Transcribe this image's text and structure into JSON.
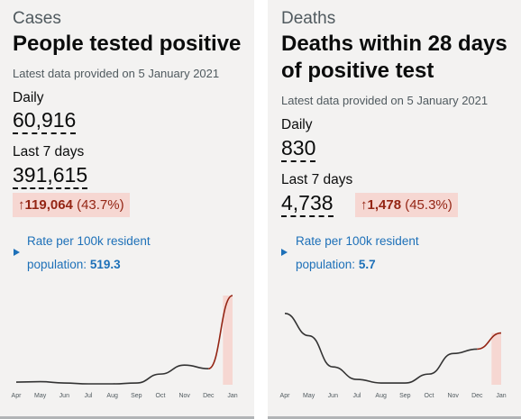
{
  "cards": [
    {
      "category": "Cases",
      "title_lines": [
        "People tested positive"
      ],
      "meta": "Latest data provided on 5 January 2021",
      "daily_label": "Daily",
      "daily_value": "60,916",
      "week_label": "Last 7 days",
      "week_value": "391,615",
      "change_arrow": "↑",
      "change_amount": "119,064",
      "change_pct": "(43.7%)",
      "rate_line1": "Rate per 100k resident",
      "rate_line2_prefix": "population: ",
      "rate_value": "519.3"
    },
    {
      "category": "Deaths",
      "title_lines": [
        "Deaths within 28 days",
        "of positive test"
      ],
      "meta": "Latest data provided on 5 January 2021",
      "daily_label": "Daily",
      "daily_value": "830",
      "week_label": "Last 7 days",
      "week_value": "4,738",
      "change_arrow": "↑",
      "change_amount": "1,478",
      "change_pct": "(45.3%)",
      "rate_line1": "Rate per 100k resident",
      "rate_line2_prefix": "population: ",
      "rate_value": "5.7"
    }
  ],
  "colors": {
    "line": "#333333",
    "recent_line": "#942514",
    "recent_band": "#f6d7d2",
    "link": "#1d70b8"
  },
  "chart_data": [
    {
      "type": "line",
      "title": "",
      "x_ticks": [
        "Apr",
        "May",
        "Jun",
        "Jul",
        "Aug",
        "Sep",
        "Oct",
        "Nov",
        "Dec",
        "Jan"
      ],
      "grid": false,
      "legend": "none",
      "series": [
        {
          "points": [
            [
              "Apr",
              3
            ],
            [
              "May",
              3.5
            ],
            [
              "Jun",
              2
            ],
            [
              "Jul",
              1
            ],
            [
              "Aug",
              1
            ],
            [
              "Sep",
              2
            ],
            [
              "Oct",
              12
            ],
            [
              "Nov",
              22
            ],
            [
              "Dec",
              18
            ],
            [
              "Jan",
              100
            ]
          ],
          "recent_from": "Dec"
        }
      ]
    },
    {
      "type": "line",
      "title": "",
      "x_ticks": [
        "Apr",
        "May",
        "Jun",
        "Jul",
        "Aug",
        "Sep",
        "Oct",
        "Nov",
        "Dec",
        "Jan"
      ],
      "grid": false,
      "legend": "none",
      "series": [
        {
          "points": [
            [
              "Apr",
              80
            ],
            [
              "May",
              55
            ],
            [
              "Jun",
              20
            ],
            [
              "Jul",
              6
            ],
            [
              "Aug",
              2
            ],
            [
              "Sep",
              2
            ],
            [
              "Oct",
              12
            ],
            [
              "Nov",
              35
            ],
            [
              "Dec",
              40
            ],
            [
              "Jan",
              58
            ]
          ],
          "recent_from": "Dec"
        }
      ]
    }
  ]
}
